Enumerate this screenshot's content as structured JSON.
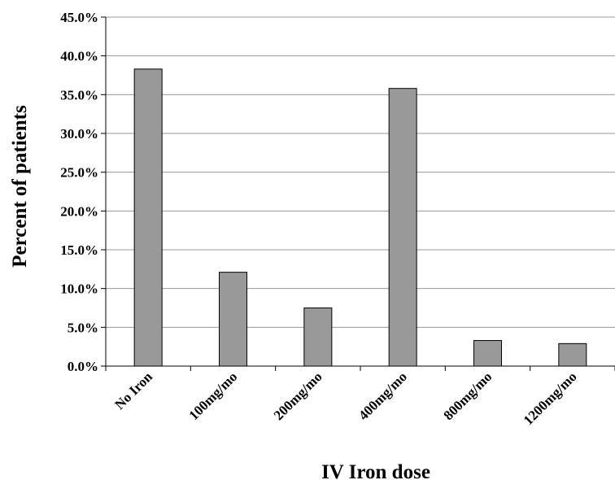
{
  "chart_data": {
    "type": "bar",
    "title": "",
    "xlabel": "IV Iron dose",
    "ylabel": "Percent of patients",
    "categories": [
      "No Iron",
      "100mg/mo",
      "200mg/mo",
      "400mg/mo",
      "800mg/mo",
      "1200mg/mo"
    ],
    "values": [
      38.3,
      12.1,
      7.5,
      35.8,
      3.3,
      2.9
    ],
    "ylim": [
      0,
      45
    ],
    "yticks": [
      0,
      5,
      10,
      15,
      20,
      25,
      30,
      35,
      40,
      45
    ],
    "ytick_labels": [
      "0.0%",
      "5.0%",
      "10.0%",
      "15.0%",
      "20.0%",
      "25.0%",
      "30.0%",
      "35.0%",
      "40.0%",
      "45.0%"
    ],
    "grid": true,
    "legend": "none",
    "colors": {
      "bar": "#999999",
      "bar_edge": "#000000",
      "grid": "#9a9a9a",
      "axis": "#000000"
    }
  }
}
